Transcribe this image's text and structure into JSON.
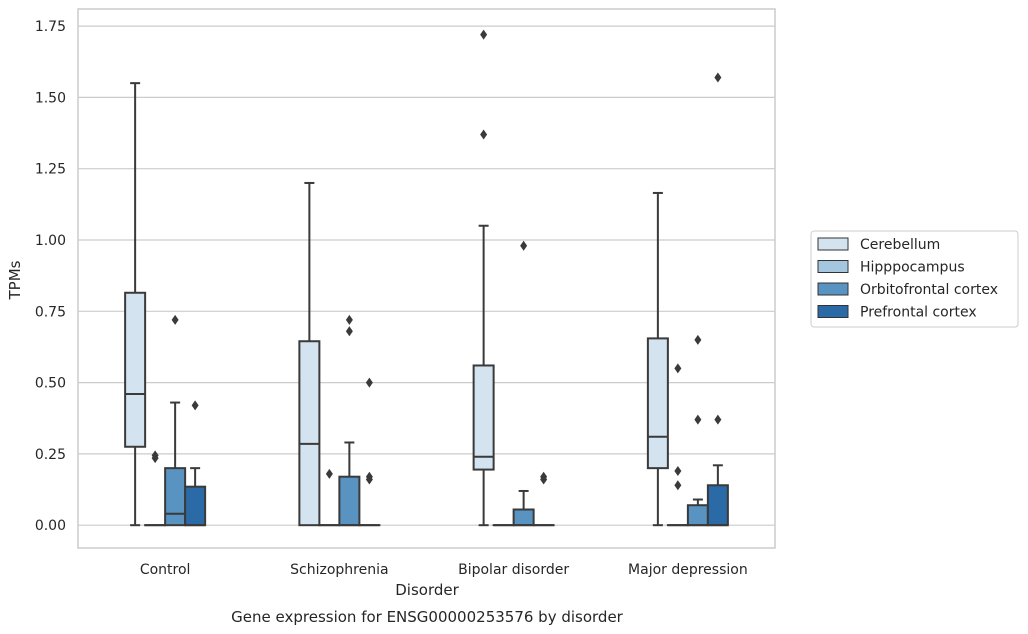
{
  "chart_data": {
    "type": "box",
    "title": "",
    "caption": "Gene expression for ENSG00000253576 by disorder",
    "xlabel": "Disorder",
    "ylabel": "TPMs",
    "ylim": [
      -0.08,
      1.81
    ],
    "yticks": [
      0.0,
      0.25,
      0.5,
      0.75,
      1.0,
      1.25,
      1.5,
      1.75
    ],
    "ytick_labels": [
      "0.00",
      "0.25",
      "0.50",
      "0.75",
      "1.00",
      "1.25",
      "1.50",
      "1.75"
    ],
    "grid": "horizontal",
    "legend_position": "right",
    "categories": [
      "Control",
      "Schizophrenia",
      "Bipolar disorder",
      "Major depression"
    ],
    "series": [
      {
        "name": "Cerebellum",
        "color": "#d4e3f0",
        "boxes": [
          {
            "min": 0.0,
            "q1": 0.275,
            "median": 0.46,
            "q3": 0.815,
            "max": 1.55,
            "outliers": []
          },
          {
            "min": 0.0,
            "q1": 0.0,
            "median": 0.285,
            "q3": 0.645,
            "max": 1.2,
            "outliers": []
          },
          {
            "min": 0.0,
            "q1": 0.195,
            "median": 0.24,
            "q3": 0.56,
            "max": 1.05,
            "outliers": [
              1.37,
              1.72
            ]
          },
          {
            "min": 0.0,
            "q1": 0.2,
            "median": 0.31,
            "q3": 0.655,
            "max": 1.165,
            "outliers": []
          }
        ]
      },
      {
        "name": "Hipppocampus",
        "color": "#a4c7df",
        "boxes": [
          {
            "min": 0.0,
            "q1": 0.0,
            "median": 0.0,
            "q3": 0.0,
            "max": 0.0,
            "outliers": [
              0.235,
              0.245
            ]
          },
          {
            "min": 0.0,
            "q1": 0.0,
            "median": 0.0,
            "q3": 0.0,
            "max": 0.0,
            "outliers": [
              0.18
            ]
          },
          {
            "min": 0.0,
            "q1": 0.0,
            "median": 0.0,
            "q3": 0.0,
            "max": 0.0,
            "outliers": []
          },
          {
            "min": 0.0,
            "q1": 0.0,
            "median": 0.0,
            "q3": 0.0,
            "max": 0.0,
            "outliers": [
              0.14,
              0.19,
              0.55
            ]
          }
        ]
      },
      {
        "name": "Orbitofrontal cortex",
        "color": "#5993c1",
        "boxes": [
          {
            "min": 0.0,
            "q1": 0.0,
            "median": 0.04,
            "q3": 0.2,
            "max": 0.43,
            "outliers": [
              0.72
            ]
          },
          {
            "min": 0.0,
            "q1": 0.0,
            "median": 0.0,
            "q3": 0.17,
            "max": 0.29,
            "outliers": [
              0.68,
              0.72
            ]
          },
          {
            "min": 0.0,
            "q1": 0.0,
            "median": 0.0,
            "q3": 0.055,
            "max": 0.12,
            "outliers": [
              0.98
            ]
          },
          {
            "min": 0.0,
            "q1": 0.0,
            "median": 0.0,
            "q3": 0.07,
            "max": 0.09,
            "outliers": [
              0.37,
              0.65
            ]
          }
        ]
      },
      {
        "name": "Prefrontal cortex",
        "color": "#2a6aa6",
        "boxes": [
          {
            "min": 0.0,
            "q1": 0.0,
            "median": 0.0,
            "q3": 0.135,
            "max": 0.2,
            "outliers": [
              0.42
            ]
          },
          {
            "min": 0.0,
            "q1": 0.0,
            "median": 0.0,
            "q3": 0.0,
            "max": 0.0,
            "outliers": [
              0.16,
              0.17,
              0.5
            ]
          },
          {
            "min": 0.0,
            "q1": 0.0,
            "median": 0.0,
            "q3": 0.0,
            "max": 0.0,
            "outliers": [
              0.16,
              0.17
            ]
          },
          {
            "min": 0.0,
            "q1": 0.0,
            "median": 0.0,
            "q3": 0.14,
            "max": 0.21,
            "outliers": [
              0.37,
              1.57
            ]
          }
        ]
      }
    ]
  }
}
